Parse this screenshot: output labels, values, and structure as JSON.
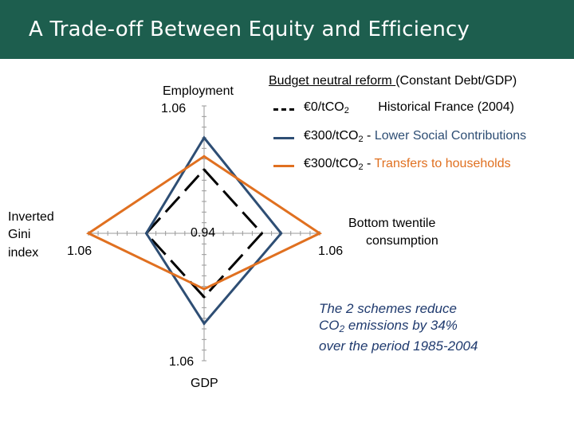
{
  "title": "A Trade-off Between Equity and Efficiency",
  "legend": {
    "title_underlined": "Budget neutral reform ",
    "title_rest": "(Constant Debt/GDP)",
    "entries": [
      {
        "value": "€0/tCO",
        "sub": "2",
        "suffix": "",
        "note": "Historical France (2004)",
        "color": "#000000",
        "style": "dashed"
      },
      {
        "value": "€300/tCO",
        "sub": "2",
        "suffix": " - ",
        "note": "Lower Social Contributions",
        "color": "#2e4e74",
        "style": "solid"
      },
      {
        "value": "€300/tCO",
        "sub": "2",
        "suffix": " - ",
        "note": "Transfers to households",
        "color": "#e07020",
        "style": "solid"
      }
    ]
  },
  "axes_labels": {
    "employment": "Employment",
    "employment_max": "1.06",
    "gini_1": "Inverted",
    "gini_2": "Gini",
    "gini_3": "index",
    "gini_max": "1.06",
    "center": "0.94",
    "consumption_1": "Bottom twentile",
    "consumption_2": "consumption",
    "consumption_max": "1.06",
    "gdp_max": "1.06",
    "gdp": "GDP"
  },
  "note": {
    "line1": "The 2 schemes reduce",
    "line2a": "CO",
    "line2sub": "2",
    "line2b": " emissions by 34%",
    "line3": "over the period 1985-2004"
  },
  "chart_data": {
    "type": "radar",
    "axes": [
      "Employment",
      "Bottom twentile consumption",
      "GDP",
      "Inverted Gini index"
    ],
    "range": [
      0.94,
      1.06
    ],
    "ticks": 12,
    "series": [
      {
        "name": "€0/tCO2 Historical France (2004)",
        "color": "#000000",
        "dash": true,
        "values": [
          1.0,
          1.0,
          1.0,
          1.0
        ]
      },
      {
        "name": "€300/tCO2 - Lower Social Contributions",
        "color": "#2e4e74",
        "dash": false,
        "values": [
          1.03,
          1.02,
          1.025,
          1.0
        ]
      },
      {
        "name": "€300/tCO2 - Transfers to households",
        "color": "#e07020",
        "dash": false,
        "values": [
          1.0125,
          1.06,
          0.9925,
          1.06
        ]
      }
    ]
  }
}
